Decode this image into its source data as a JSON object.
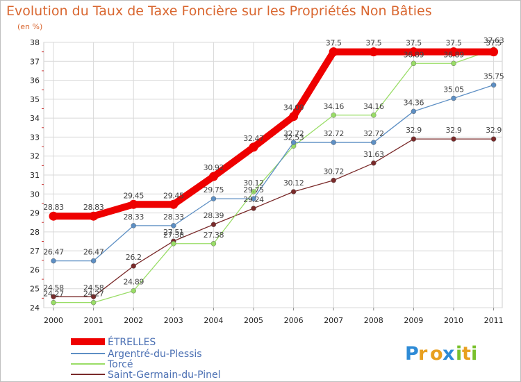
{
  "chart_data": {
    "type": "line",
    "title": "Evolution du Taux de Taxe Foncière sur les Propriétés Non Bâties",
    "ylabel": "(en %)",
    "xlabel": "",
    "x": [
      "2000",
      "2001",
      "2002",
      "2003",
      "2004",
      "2005",
      "2006",
      "2007",
      "2008",
      "2009",
      "2010",
      "2011"
    ],
    "ylim": [
      24,
      38
    ],
    "yticks": [
      "24",
      "25",
      "26",
      "27",
      "28",
      "29",
      "30",
      "31",
      "32",
      "33",
      "34",
      "35",
      "36",
      "37",
      "38"
    ],
    "grid": true,
    "legend_position": "bottom-left",
    "series": [
      {
        "name": "ÉTRELLES",
        "color": "#ee0000",
        "values": [
          28.83,
          28.83,
          29.45,
          29.45,
          30.92,
          32.47,
          34.09,
          37.5,
          37.5,
          37.5,
          37.5,
          37.5
        ],
        "labels": [
          "28.83",
          "28.83",
          "29.45",
          "29.45",
          "30.92",
          "32.47",
          "34.09",
          "37.5",
          "37.5",
          "37.5",
          "37.5",
          "37.5"
        ]
      },
      {
        "name": "Argentré-du-Plessis",
        "color": "#5d8fc4",
        "values": [
          26.47,
          26.47,
          28.33,
          28.33,
          29.75,
          29.75,
          32.72,
          32.72,
          32.72,
          34.36,
          35.05,
          35.75
        ],
        "labels": [
          "26.47",
          "26.47",
          "28.33",
          "28.33",
          "29.75",
          "29.75",
          "32.72",
          "32.72",
          "32.72",
          "34.36",
          "35.05",
          "35.75"
        ]
      },
      {
        "name": "Torcé",
        "color": "#99dd66",
        "values": [
          24.27,
          24.27,
          24.89,
          27.38,
          27.38,
          30.12,
          32.53,
          34.16,
          34.16,
          36.89,
          36.89,
          37.63
        ],
        "labels": [
          "24.27",
          "24.27",
          "24.89",
          "27.38",
          "27.38",
          "30.12",
          "32.53",
          "34.16",
          "34.16",
          "36.89",
          "36.89",
          "37.63"
        ]
      },
      {
        "name": "Saint-Germain-du-Pinel",
        "color": "#7a2a2a",
        "values": [
          24.58,
          24.58,
          26.2,
          27.51,
          28.39,
          29.24,
          30.12,
          30.72,
          31.63,
          32.9,
          32.9,
          32.9
        ],
        "labels": [
          "24.58",
          "24.58",
          "26.2",
          "27.51",
          "28.39",
          "29.24",
          "30.12",
          "30.72",
          "31.63",
          "32.9",
          "32.9",
          "32.9"
        ]
      }
    ],
    "logo": {
      "letters": [
        "P",
        "r",
        "o",
        "x",
        "i",
        "t",
        "i"
      ],
      "colors": [
        "#2e8bd6",
        "#e8a020",
        "#e8a020",
        "#2e8bd6",
        "#79c12c",
        "#e8a020",
        "#79c12c"
      ]
    }
  }
}
